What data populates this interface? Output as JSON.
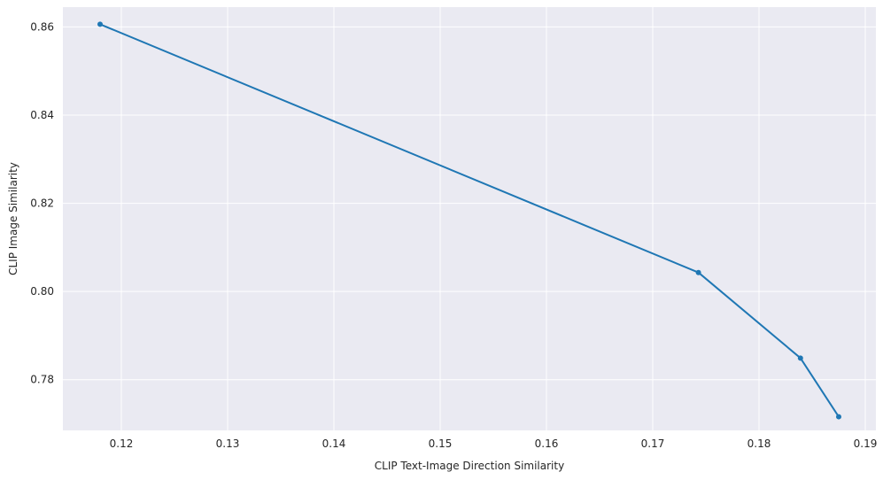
{
  "chart_data": {
    "type": "line",
    "title": "",
    "xlabel": "CLIP Text-Image Direction Similarity",
    "ylabel": "CLIP Image Similarity",
    "xlim": [
      0.1145,
      0.191
    ],
    "ylim": [
      0.7685,
      0.8645
    ],
    "xticks": [
      0.12,
      0.13,
      0.14,
      0.15,
      0.16,
      0.17,
      0.18,
      0.19
    ],
    "yticks": [
      0.78,
      0.8,
      0.82,
      0.84,
      0.86
    ],
    "xtick_labels": [
      "0.12",
      "0.13",
      "0.14",
      "0.15",
      "0.16",
      "0.17",
      "0.18",
      "0.19"
    ],
    "ytick_labels": [
      "0.78",
      "0.80",
      "0.82",
      "0.84",
      "0.86"
    ],
    "grid": true,
    "series": [
      {
        "color": "#1f77b4",
        "marker": "circle",
        "x": [
          0.118,
          0.1743,
          0.1839,
          0.1875
        ],
        "y": [
          0.8606,
          0.8043,
          0.7849,
          0.7716
        ]
      }
    ],
    "colors": {
      "plot_background": "#eaeaf2",
      "grid": "#ffffff",
      "line": "#1f77b4"
    }
  }
}
